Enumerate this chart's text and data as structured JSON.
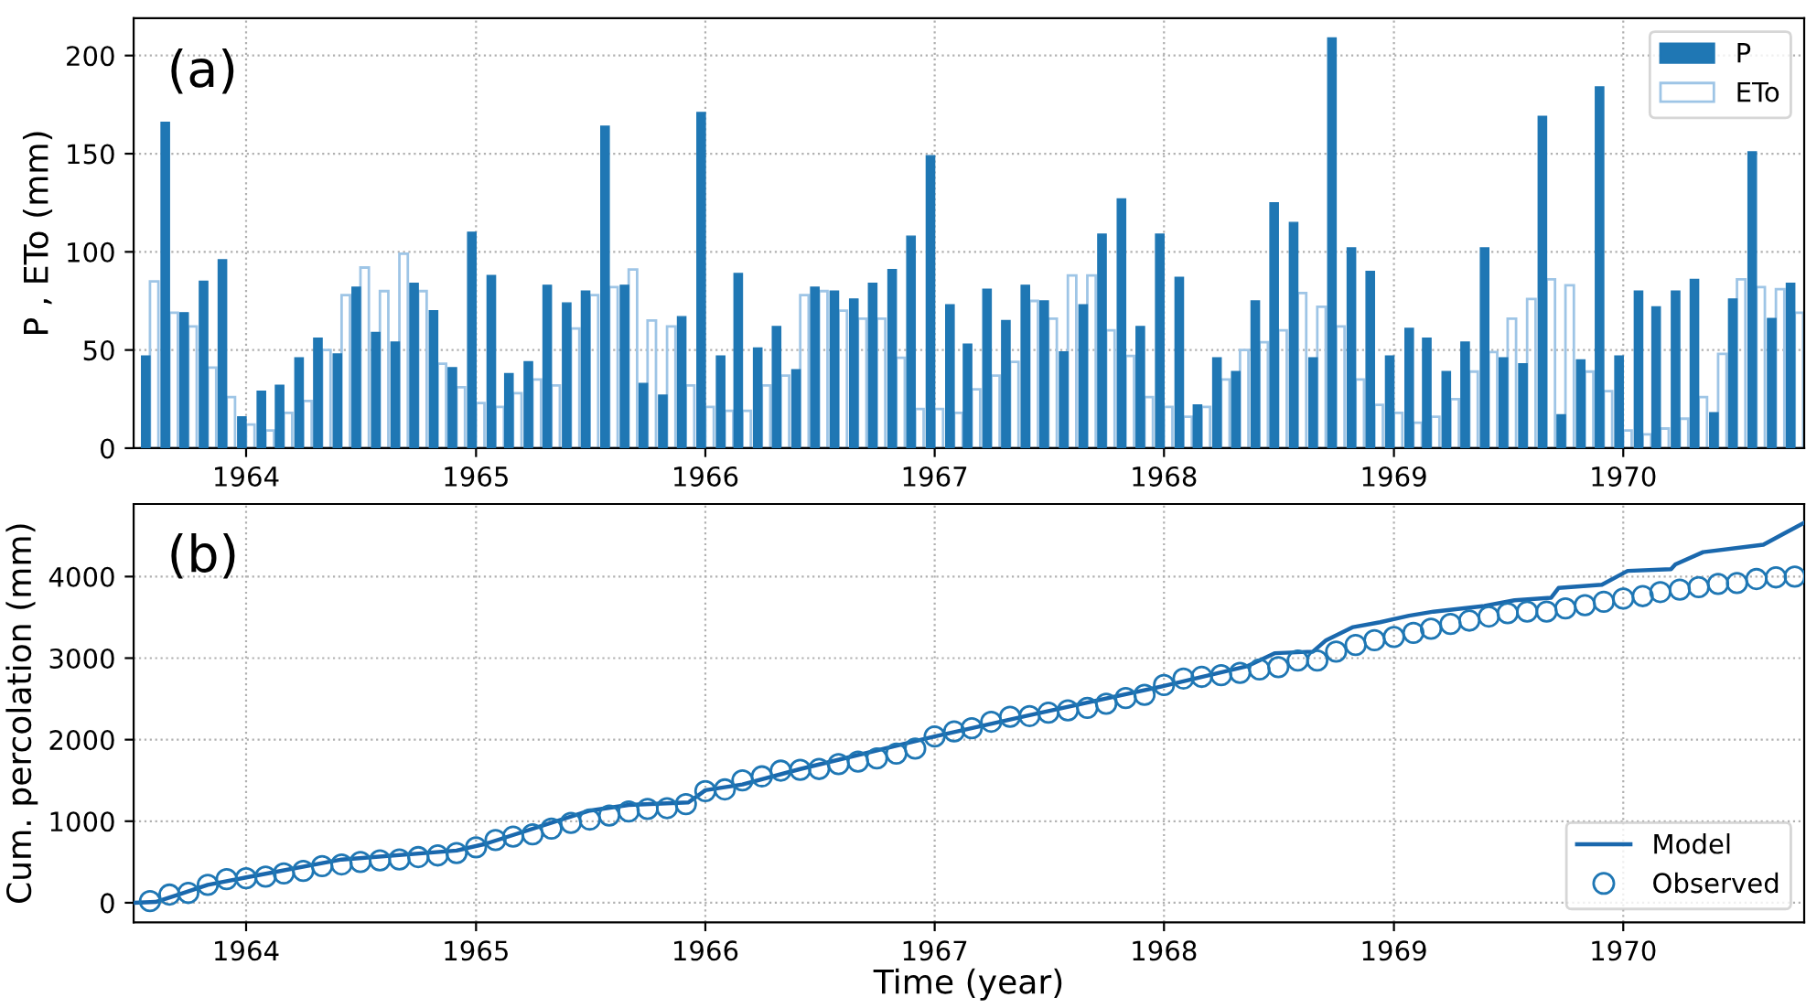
{
  "chart_data": [
    {
      "type": "bar",
      "ylabel": "P , ETo (mm)",
      "annotations": [
        "(a)"
      ],
      "x": [
        "1963-08",
        "1963-09",
        "1963-10",
        "1963-11",
        "1963-12",
        "1964-01",
        "1964-02",
        "1964-03",
        "1964-04",
        "1964-05",
        "1964-06",
        "1964-07",
        "1964-08",
        "1964-09",
        "1964-10",
        "1964-11",
        "1964-12",
        "1965-01",
        "1965-02",
        "1965-03",
        "1965-04",
        "1965-05",
        "1965-06",
        "1965-07",
        "1965-08",
        "1965-09",
        "1965-10",
        "1965-11",
        "1965-12",
        "1966-01",
        "1966-02",
        "1966-03",
        "1966-04",
        "1966-05",
        "1966-06",
        "1966-07",
        "1966-08",
        "1966-09",
        "1966-10",
        "1966-11",
        "1966-12",
        "1967-01",
        "1967-02",
        "1967-03",
        "1967-04",
        "1967-05",
        "1967-06",
        "1967-07",
        "1967-08",
        "1967-09",
        "1967-10",
        "1967-11",
        "1967-12",
        "1968-01",
        "1968-02",
        "1968-03",
        "1968-04",
        "1968-05",
        "1968-06",
        "1968-07",
        "1968-08",
        "1968-09",
        "1968-10",
        "1968-11",
        "1968-12",
        "1969-01",
        "1969-02",
        "1969-03",
        "1969-04",
        "1969-05",
        "1969-06",
        "1969-07",
        "1969-08",
        "1969-09",
        "1969-10",
        "1969-11",
        "1969-12",
        "1970-01",
        "1970-02",
        "1970-03",
        "1970-04",
        "1970-05",
        "1970-06",
        "1970-07",
        "1970-08",
        "1970-09",
        "1970-10"
      ],
      "series": [
        {
          "name": "P",
          "color": "#1f77b4",
          "values": [
            47,
            166,
            69,
            85,
            96,
            16,
            29,
            32,
            46,
            56,
            48,
            82,
            59,
            54,
            84,
            70,
            41,
            110,
            88,
            38,
            44,
            83,
            74,
            80,
            164,
            83,
            33,
            27,
            67,
            171,
            47,
            89,
            51,
            62,
            40,
            82,
            80,
            76,
            84,
            91,
            108,
            149,
            73,
            53,
            81,
            65,
            83,
            75,
            49,
            73,
            109,
            127,
            62,
            109,
            87,
            22,
            46,
            39,
            75,
            125,
            115,
            46,
            209,
            102,
            90,
            47,
            61,
            56,
            39,
            54,
            102,
            46,
            43,
            169,
            17,
            45,
            184,
            47,
            80,
            72,
            80,
            86,
            18,
            76,
            151,
            66,
            84
          ]
        },
        {
          "name": "ETo",
          "color": "#9ec5e6",
          "values": [
            85,
            69,
            62,
            41,
            26,
            12,
            9,
            18,
            24,
            50,
            78,
            92,
            80,
            99,
            80,
            43,
            31,
            23,
            21,
            28,
            35,
            32,
            61,
            78,
            82,
            91,
            65,
            62,
            32,
            21,
            19,
            19,
            32,
            37,
            78,
            80,
            70,
            66,
            66,
            46,
            20,
            20,
            18,
            30,
            37,
            44,
            75,
            66,
            88,
            88,
            60,
            47,
            26,
            21,
            16,
            21,
            35,
            50,
            54,
            60,
            79,
            72,
            62,
            35,
            22,
            18,
            13,
            16,
            25,
            39,
            49,
            66,
            76,
            86,
            83,
            39,
            29,
            9,
            7,
            10,
            15,
            26,
            48,
            86,
            82,
            81,
            69
          ]
        }
      ],
      "xlim": [
        "1963-07-06",
        "1970-10-16"
      ],
      "xticks": [
        {
          "value": "1964-01-01",
          "label": "1964"
        },
        {
          "value": "1965-01-01",
          "label": "1965"
        },
        {
          "value": "1966-01-01",
          "label": "1966"
        },
        {
          "value": "1967-01-01",
          "label": "1967"
        },
        {
          "value": "1968-01-01",
          "label": "1968"
        },
        {
          "value": "1969-01-01",
          "label": "1969"
        },
        {
          "value": "1970-01-01",
          "label": "1970"
        }
      ],
      "ylim": [
        0,
        219
      ],
      "yticks": [
        0,
        50,
        100,
        150,
        200
      ],
      "grid": true,
      "legend": "top right"
    },
    {
      "type": "line",
      "xlabel": "Time (year)",
      "ylabel": "Cum. percolation (mm)",
      "annotations": [
        "(b)"
      ],
      "series": [
        {
          "name": "Model",
          "type": "line",
          "color": "#1a68ad",
          "marker": "none",
          "x": [
            "1963-07-06",
            "1963-08-10",
            "1963-09-15",
            "1963-11-01",
            "1964-01-01",
            "1964-06-01",
            "1964-12-01",
            "1965-01-15",
            "1965-07-01",
            "1965-09-01",
            "1965-12-05",
            "1966-01-01",
            "1966-03-01",
            "1966-06-01",
            "1967-01-01",
            "1967-06-01",
            "1968-01-01",
            "1968-05-12",
            "1968-06-25",
            "1968-08-25",
            "1968-09-15",
            "1968-10-28",
            "1968-12-10",
            "1969-01-25",
            "1969-03-05",
            "1969-05-25",
            "1969-07-12",
            "1969-09-08",
            "1969-09-20",
            "1969-11-28",
            "1970-01-08",
            "1970-03-18",
            "1970-03-25",
            "1970-05-08",
            "1970-08-12",
            "1970-09-12",
            "1970-10-16"
          ],
          "values": [
            0,
            10,
            100,
            220,
            310,
            530,
            640,
            720,
            1130,
            1200,
            1230,
            1380,
            1450,
            1640,
            2040,
            2300,
            2660,
            2900,
            3060,
            3080,
            3220,
            3380,
            3440,
            3520,
            3570,
            3640,
            3710,
            3740,
            3860,
            3900,
            4070,
            4090,
            4150,
            4300,
            4390,
            4520,
            4660
          ]
        },
        {
          "name": "Observed",
          "type": "scatter",
          "color": "#1f77b4",
          "marker": "circle",
          "x": [
            "1963-08",
            "1963-09",
            "1963-10",
            "1963-11",
            "1963-12",
            "1964-01",
            "1964-02",
            "1964-03",
            "1964-04",
            "1964-05",
            "1964-06",
            "1964-07",
            "1964-08",
            "1964-09",
            "1964-10",
            "1964-11",
            "1964-12",
            "1965-01",
            "1965-02",
            "1965-03",
            "1965-04",
            "1965-05",
            "1965-06",
            "1965-07",
            "1965-08",
            "1965-09",
            "1965-10",
            "1965-11",
            "1965-12",
            "1966-01",
            "1966-02",
            "1966-03",
            "1966-04",
            "1966-05",
            "1966-06",
            "1966-07",
            "1966-08",
            "1966-09",
            "1966-10",
            "1966-11",
            "1966-12",
            "1967-01",
            "1967-02",
            "1967-03",
            "1967-04",
            "1967-05",
            "1967-06",
            "1967-07",
            "1967-08",
            "1967-09",
            "1967-10",
            "1967-11",
            "1967-12",
            "1968-01",
            "1968-02",
            "1968-03",
            "1968-04",
            "1968-05",
            "1968-06",
            "1968-07",
            "1968-08",
            "1968-09",
            "1968-10",
            "1968-11",
            "1968-12",
            "1969-01",
            "1969-02",
            "1969-03",
            "1969-04",
            "1969-05",
            "1969-06",
            "1969-07",
            "1969-08",
            "1969-09",
            "1969-10",
            "1969-11",
            "1969-12",
            "1970-01",
            "1970-02",
            "1970-03",
            "1970-04",
            "1970-05",
            "1970-06",
            "1970-07",
            "1970-08",
            "1970-09",
            "1970-10"
          ],
          "values": [
            20,
            100,
            120,
            220,
            290,
            300,
            320,
            360,
            390,
            450,
            470,
            500,
            520,
            530,
            560,
            580,
            610,
            680,
            770,
            810,
            840,
            910,
            980,
            1020,
            1070,
            1120,
            1150,
            1160,
            1210,
            1370,
            1390,
            1500,
            1550,
            1620,
            1630,
            1640,
            1700,
            1730,
            1770,
            1830,
            1890,
            2040,
            2100,
            2140,
            2220,
            2280,
            2290,
            2330,
            2360,
            2390,
            2440,
            2510,
            2550,
            2670,
            2750,
            2770,
            2790,
            2820,
            2860,
            2890,
            2970,
            2970,
            3080,
            3160,
            3220,
            3260,
            3310,
            3360,
            3420,
            3460,
            3510,
            3550,
            3570,
            3570,
            3610,
            3650,
            3690,
            3730,
            3760,
            3810,
            3840,
            3870,
            3910,
            3920,
            3970,
            3990,
            4000
          ]
        }
      ],
      "xlim": [
        "1963-07-06",
        "1970-10-16"
      ],
      "xticks": [
        {
          "value": "1964-01-01",
          "label": "1964"
        },
        {
          "value": "1965-01-01",
          "label": "1965"
        },
        {
          "value": "1966-01-01",
          "label": "1966"
        },
        {
          "value": "1967-01-01",
          "label": "1967"
        },
        {
          "value": "1968-01-01",
          "label": "1968"
        },
        {
          "value": "1969-01-01",
          "label": "1969"
        },
        {
          "value": "1970-01-01",
          "label": "1970"
        }
      ],
      "ylim": [
        -240,
        4890
      ],
      "yticks": [
        0,
        1000,
        2000,
        3000,
        4000
      ],
      "grid": true,
      "legend": "bottom right"
    }
  ]
}
